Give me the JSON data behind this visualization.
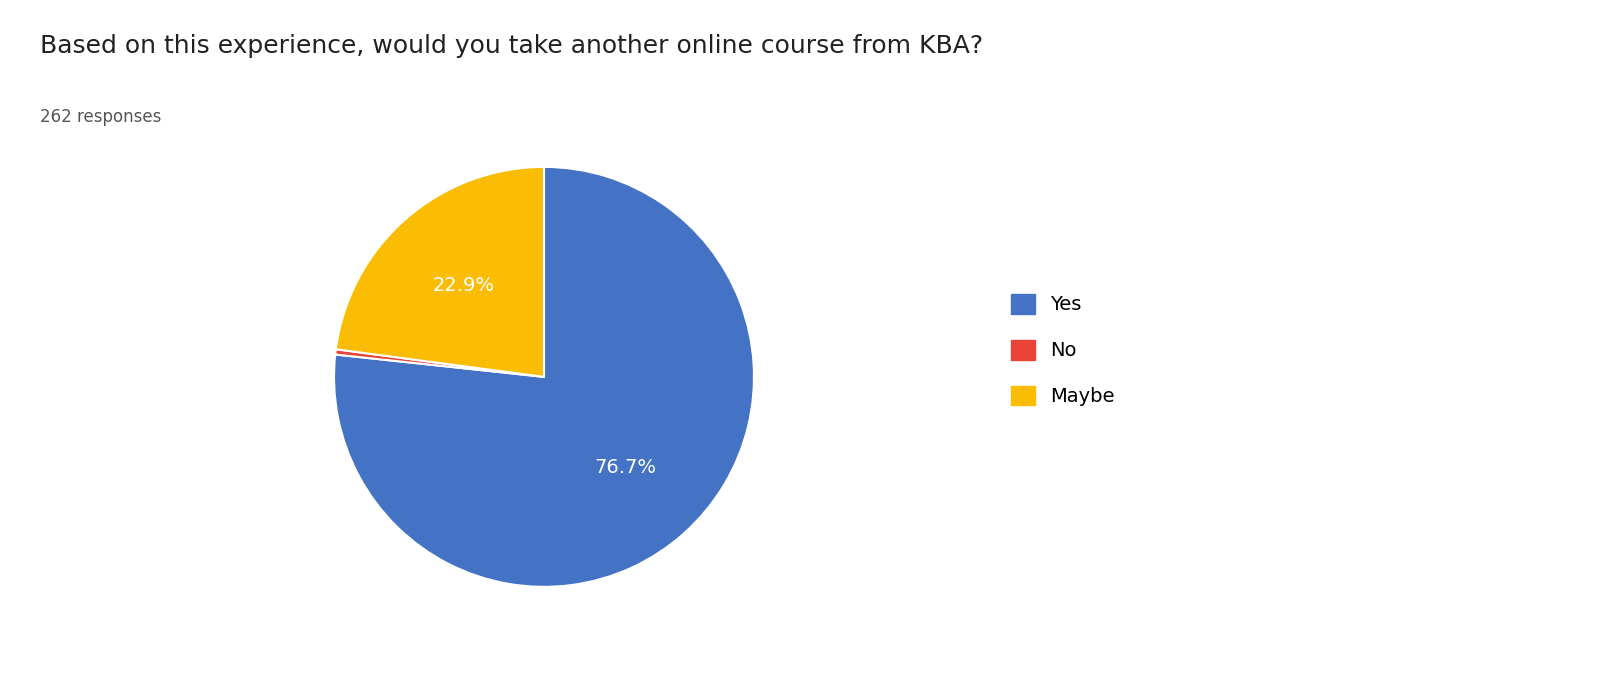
{
  "title": "Based on this experience, would you take another online course from KBA?",
  "subtitle": "262 responses",
  "labels": [
    "Yes",
    "No",
    "Maybe"
  ],
  "values": [
    76.7,
    0.4,
    22.9
  ],
  "colors": [
    "#4472C4",
    "#E84335",
    "#FBBC04"
  ],
  "text_color_inside": "#FFFFFF",
  "background_color": "#FFFFFF",
  "title_fontsize": 18,
  "subtitle_fontsize": 12,
  "label_fontsize": 14,
  "legend_fontsize": 14,
  "startangle": 90
}
